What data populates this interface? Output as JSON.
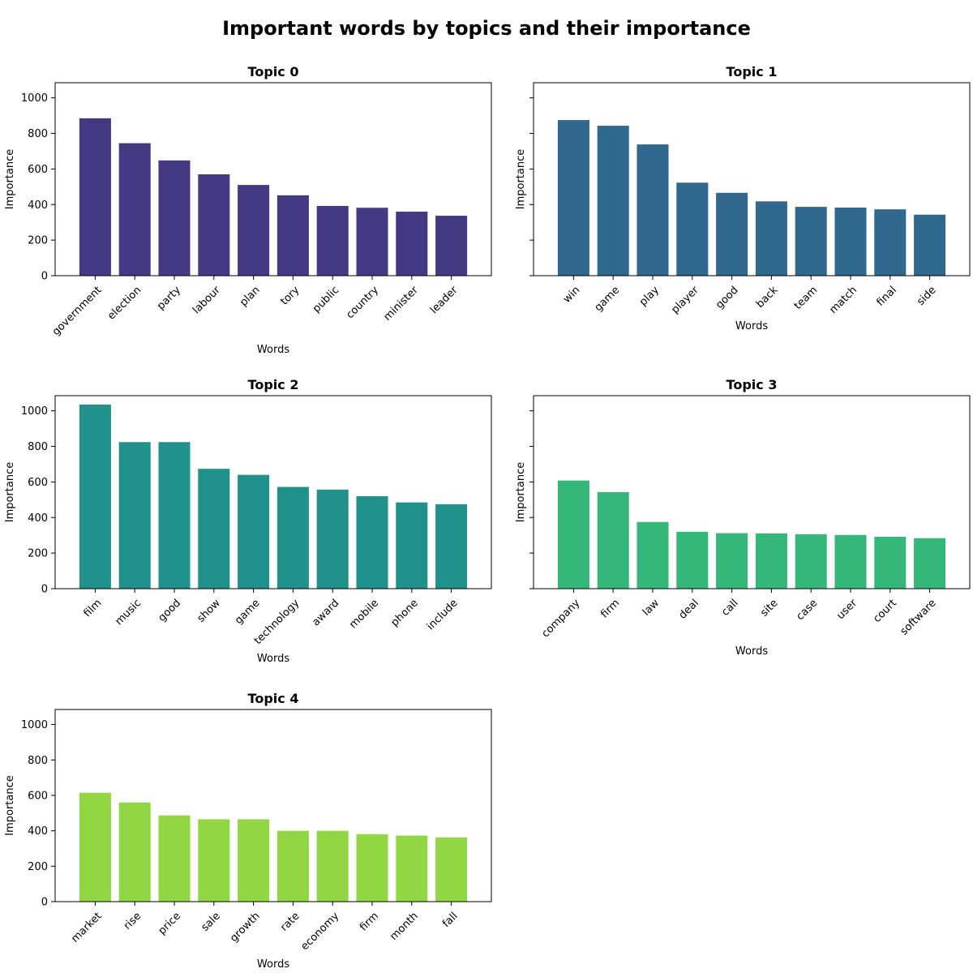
{
  "title": "Important words by topics and their importance",
  "chart_data": [
    {
      "type": "bar",
      "title": "Topic 0",
      "xlabel": "Words",
      "ylabel": "Importance",
      "ylim": [
        0,
        1085
      ],
      "yticks": [
        0,
        200,
        400,
        600,
        800,
        1000
      ],
      "color": "#443983",
      "categories": [
        "government",
        "election",
        "party",
        "labour",
        "plan",
        "tory",
        "public",
        "country",
        "minister",
        "leader"
      ],
      "values": [
        885,
        745,
        648,
        570,
        510,
        452,
        392,
        382,
        360,
        337
      ]
    },
    {
      "type": "bar",
      "title": "Topic 1",
      "xlabel": "Words",
      "ylabel": "Importance",
      "ylim": [
        0,
        1085
      ],
      "yticks": [
        0,
        200,
        400,
        600,
        800,
        1000
      ],
      "color": "#31688e",
      "categories": [
        "win",
        "game",
        "play",
        "player",
        "good",
        "back",
        "team",
        "match",
        "final",
        "side"
      ],
      "values": [
        875,
        843,
        738,
        523,
        466,
        418,
        387,
        383,
        373,
        343
      ]
    },
    {
      "type": "bar",
      "title": "Topic 2",
      "xlabel": "Words",
      "ylabel": "Importance",
      "ylim": [
        0,
        1085
      ],
      "yticks": [
        0,
        200,
        400,
        600,
        800,
        1000
      ],
      "color": "#21918c",
      "categories": [
        "film",
        "music",
        "good",
        "show",
        "game",
        "technology",
        "award",
        "mobile",
        "phone",
        "include"
      ],
      "values": [
        1035,
        824,
        824,
        674,
        640,
        572,
        557,
        520,
        485,
        475
      ]
    },
    {
      "type": "bar",
      "title": "Topic 3",
      "xlabel": "Words",
      "ylabel": "Importance",
      "ylim": [
        0,
        1085
      ],
      "yticks": [
        0,
        200,
        400,
        600,
        800,
        1000
      ],
      "color": "#35b779",
      "categories": [
        "company",
        "firm",
        "law",
        "deal",
        "call",
        "site",
        "case",
        "user",
        "court",
        "software"
      ],
      "values": [
        608,
        543,
        375,
        320,
        312,
        311,
        306,
        302,
        292,
        284
      ]
    },
    {
      "type": "bar",
      "title": "Topic 4",
      "xlabel": "Words",
      "ylabel": "Importance",
      "ylim": [
        0,
        1085
      ],
      "yticks": [
        0,
        200,
        400,
        600,
        800,
        1000
      ],
      "color": "#90d743",
      "categories": [
        "market",
        "rise",
        "price",
        "sale",
        "growth",
        "rate",
        "economy",
        "firm",
        "month",
        "fall"
      ],
      "values": [
        615,
        560,
        487,
        465,
        465,
        400,
        400,
        381,
        373,
        363
      ]
    }
  ]
}
